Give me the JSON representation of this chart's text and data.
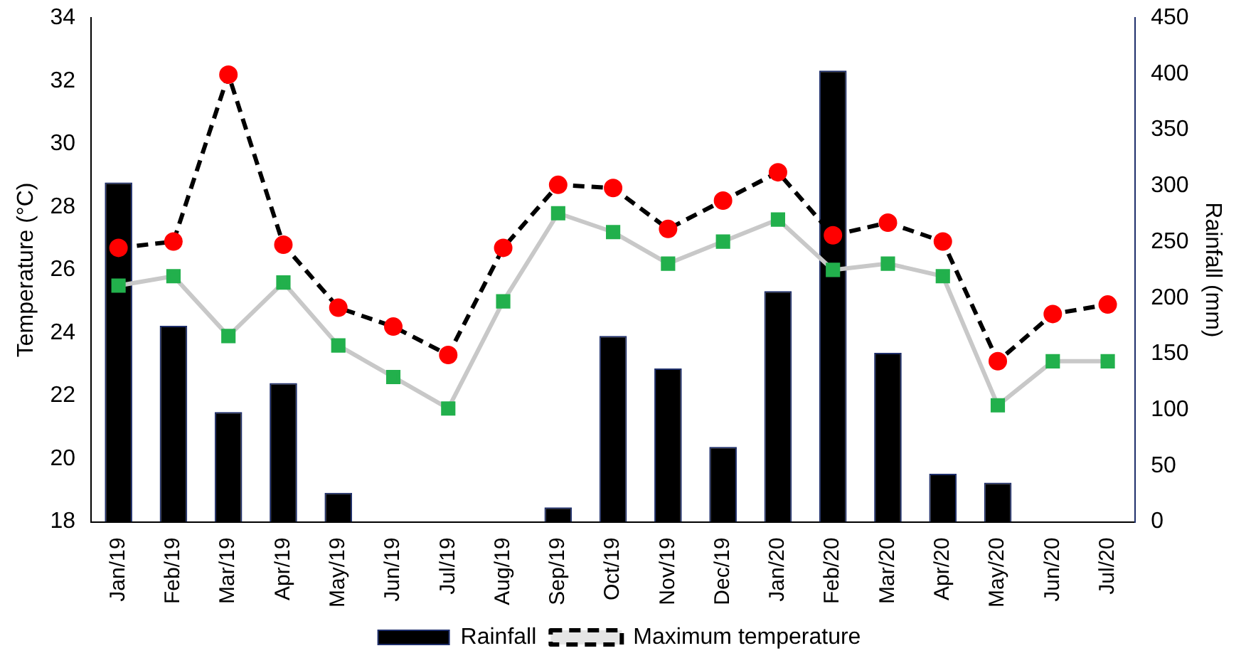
{
  "chart_data": {
    "type": "bar",
    "ylabel": "Temperature (°C)",
    "y2label": "Rainfall (mm)",
    "categories": [
      "Jan/19",
      "Feb/19",
      "Mar/19",
      "Apr/19",
      "May/19",
      "Jun/19",
      "Jul/19",
      "Aug/19",
      "Sep/19",
      "Oct/19",
      "Nov/19",
      "Dec/19",
      "Jan/20",
      "Feb/20",
      "Mar/20",
      "Apr/20",
      "May/20",
      "Jun/20",
      "Jul/20"
    ],
    "series": [
      {
        "name": "Rainfall",
        "axis": "y2",
        "color": "#000000",
        "values": [
          303,
          175,
          98,
          124,
          26,
          0,
          0,
          0,
          13,
          166,
          137,
          67,
          206,
          403,
          151,
          43,
          35,
          0,
          0
        ]
      },
      {
        "name": "Maximum temperature",
        "type": "line",
        "color": "#000000",
        "marker": "circle",
        "colors": [
          "#ff0000",
          "#ff0000",
          "#ff0000",
          "#ff0000",
          "#ff0000",
          "#ff0000",
          "#ff0000",
          "#ff0000",
          "#ff0000",
          "#ff0000",
          "#ff0000",
          "#ff0000",
          "#ff0000",
          "#ff0000",
          "#ff0000",
          "#ff0000",
          "#ff0000",
          "#ff0000",
          "#ff0000"
        ],
        "line_style": "dashed",
        "values": [
          26.7,
          26.9,
          32.2,
          26.8,
          24.8,
          24.2,
          23.3,
          26.7,
          28.7,
          28.6,
          27.3,
          28.2,
          29.1,
          27.1,
          27.5,
          26.9,
          23.1,
          24.6,
          24.9
        ]
      },
      {
        "type": "line",
        "color": "#c8c8c8",
        "marker": "square",
        "colors": [
          "#22b04c",
          "#22b04c",
          "#22b04c",
          "#22b04c",
          "#22b04c",
          "#22b04c",
          "#22b04c",
          "#22b04c",
          "#22b04c",
          "#22b04c",
          "#22b04c",
          "#22b04c",
          "#22b04c",
          "#22b04c",
          "#22b04c",
          "#22b04c",
          "#22b04c",
          "#22b04c",
          "#22b04c"
        ],
        "line_style": "solid",
        "values": [
          25.5,
          25.8,
          23.9,
          25.6,
          23.6,
          22.6,
          21.6,
          25.0,
          27.8,
          27.2,
          26.2,
          26.9,
          27.6,
          26.0,
          26.2,
          25.8,
          21.7,
          23.1,
          23.1
        ]
      }
    ],
    "ylim": [
      18,
      34
    ],
    "yticks": [
      18,
      20,
      22,
      24,
      26,
      28,
      30,
      32,
      34
    ],
    "y2lim": [
      0,
      450
    ],
    "y2ticks": [
      0,
      50,
      100,
      150,
      200,
      250,
      300,
      350,
      400,
      450
    ],
    "legend": "bottom",
    "grid": false
  }
}
